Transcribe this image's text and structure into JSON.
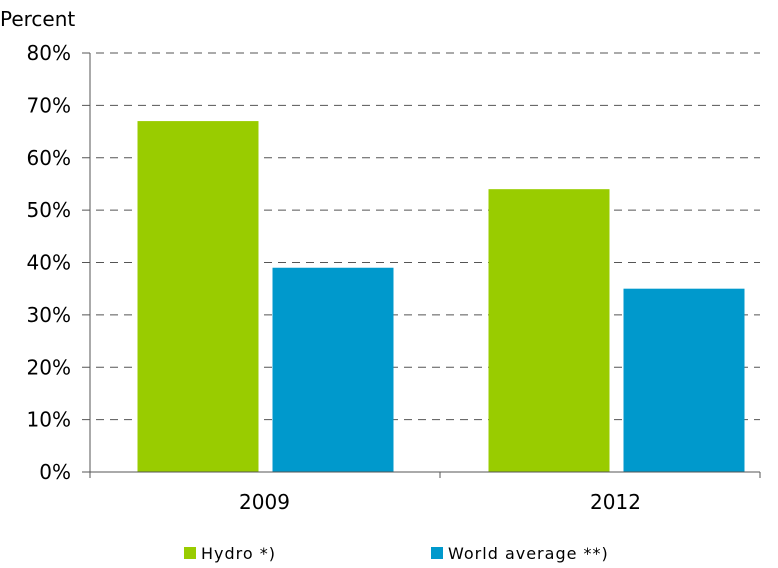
{
  "chart_data": {
    "type": "bar",
    "ylabel": "Percent",
    "categories": [
      "2009",
      "2012"
    ],
    "series": [
      {
        "name": "Hydro *)",
        "color": "#99CC00",
        "values": [
          67,
          54
        ]
      },
      {
        "name": "World average **)",
        "color": "#0099CC",
        "values": [
          39,
          35
        ]
      }
    ],
    "ylim": [
      0,
      80
    ],
    "y_ticks": [
      0,
      10,
      20,
      30,
      40,
      50,
      60,
      70,
      80
    ],
    "y_tick_labels": [
      "0%",
      "10%",
      "20%",
      "30%",
      "40%",
      "50%",
      "60%",
      "70%",
      "80%"
    ],
    "grid": true,
    "legend_position": "bottom"
  }
}
